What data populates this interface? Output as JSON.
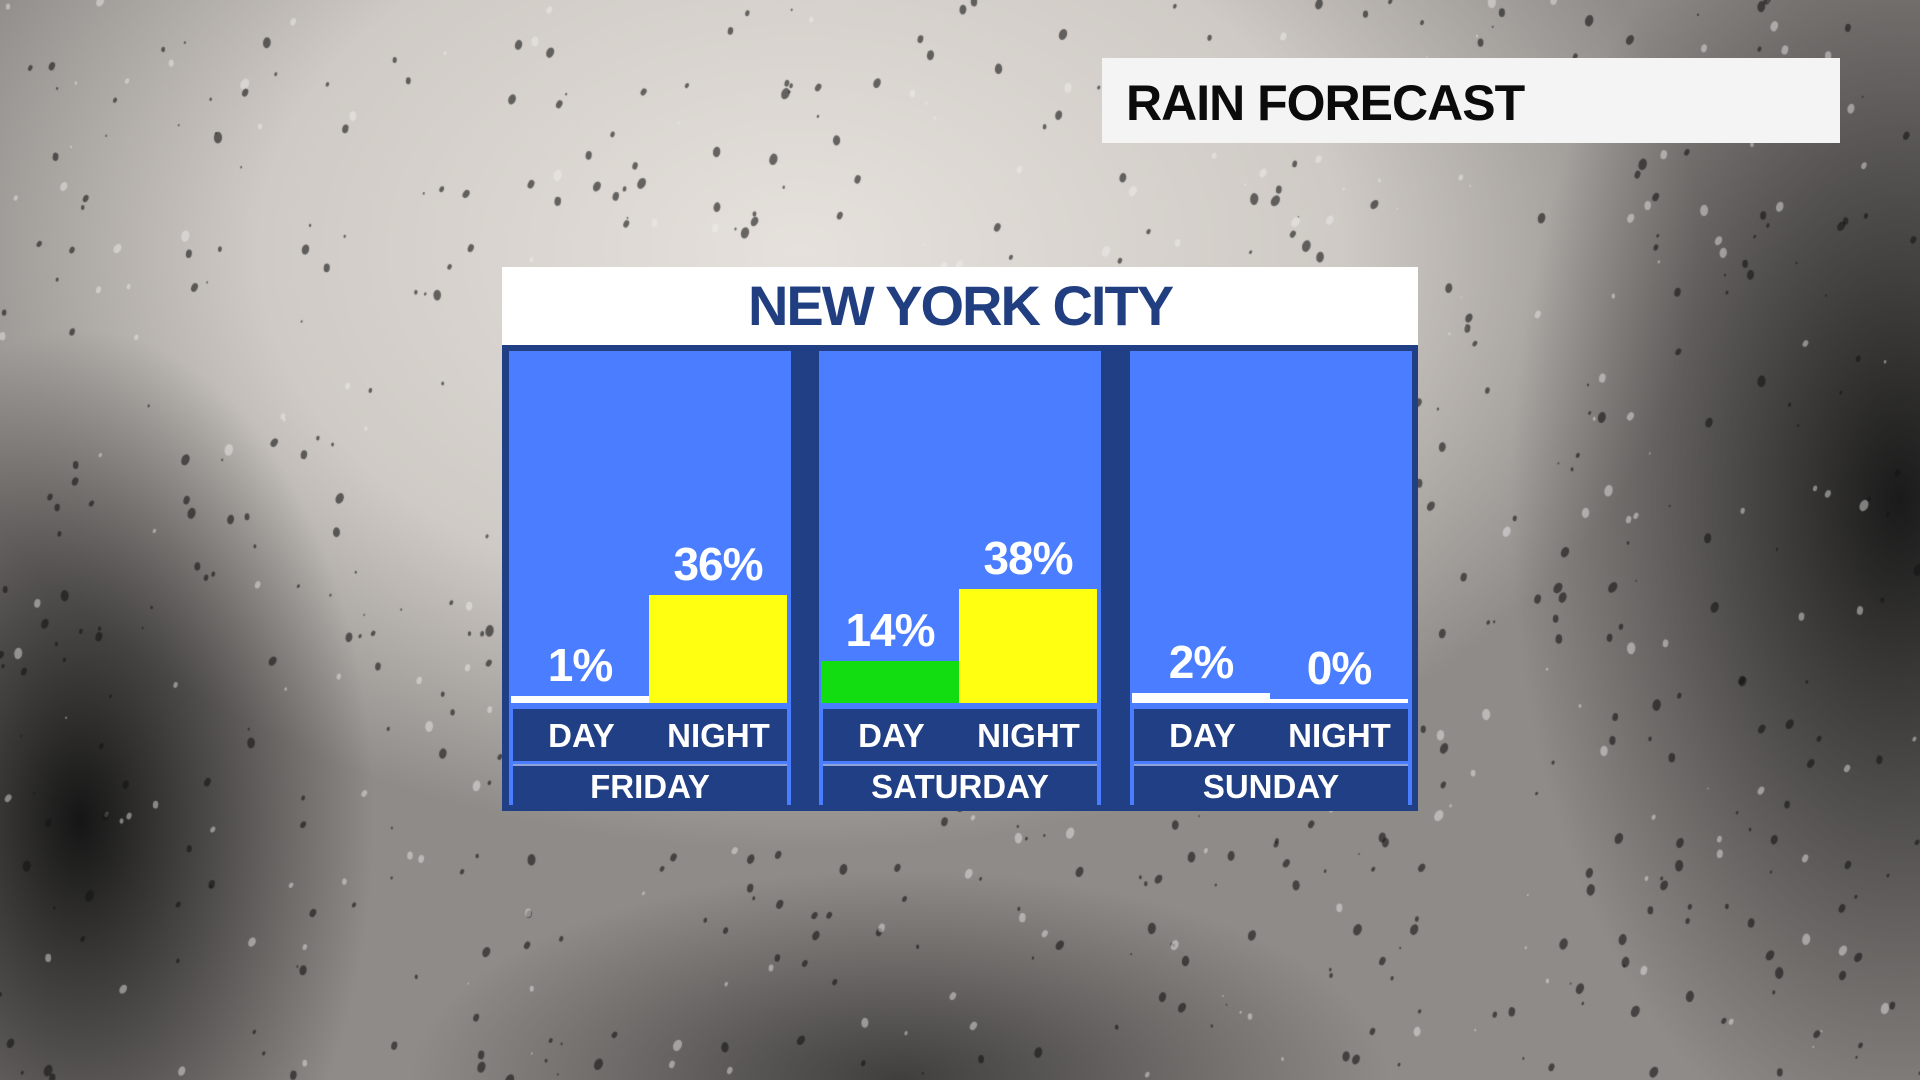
{
  "header": {
    "title": "RAIN FORECAST"
  },
  "panel": {
    "title": "NEW YORK CITY"
  },
  "colors": {
    "low": "#ffffff",
    "moderate": "#11dd11",
    "high": "#ffff11",
    "column_bg": "#4a7dff",
    "frame": "#213f85",
    "title_text": "#213f80"
  },
  "chart_data": {
    "type": "bar",
    "title": "NEW YORK CITY",
    "categories": [
      "FRIDAY",
      "SATURDAY",
      "SUNDAY"
    ],
    "sub_categories": [
      "DAY",
      "NIGHT"
    ],
    "series": [
      {
        "name": "DAY",
        "values": [
          1,
          14,
          2
        ]
      },
      {
        "name": "NIGHT",
        "values": [
          36,
          38,
          0
        ]
      }
    ],
    "labels": [
      [
        "1%",
        "36%"
      ],
      [
        "14%",
        "38%"
      ],
      [
        "2%",
        "0%"
      ]
    ],
    "unit": "%",
    "ylim": [
      0,
      100
    ],
    "grid": false
  }
}
